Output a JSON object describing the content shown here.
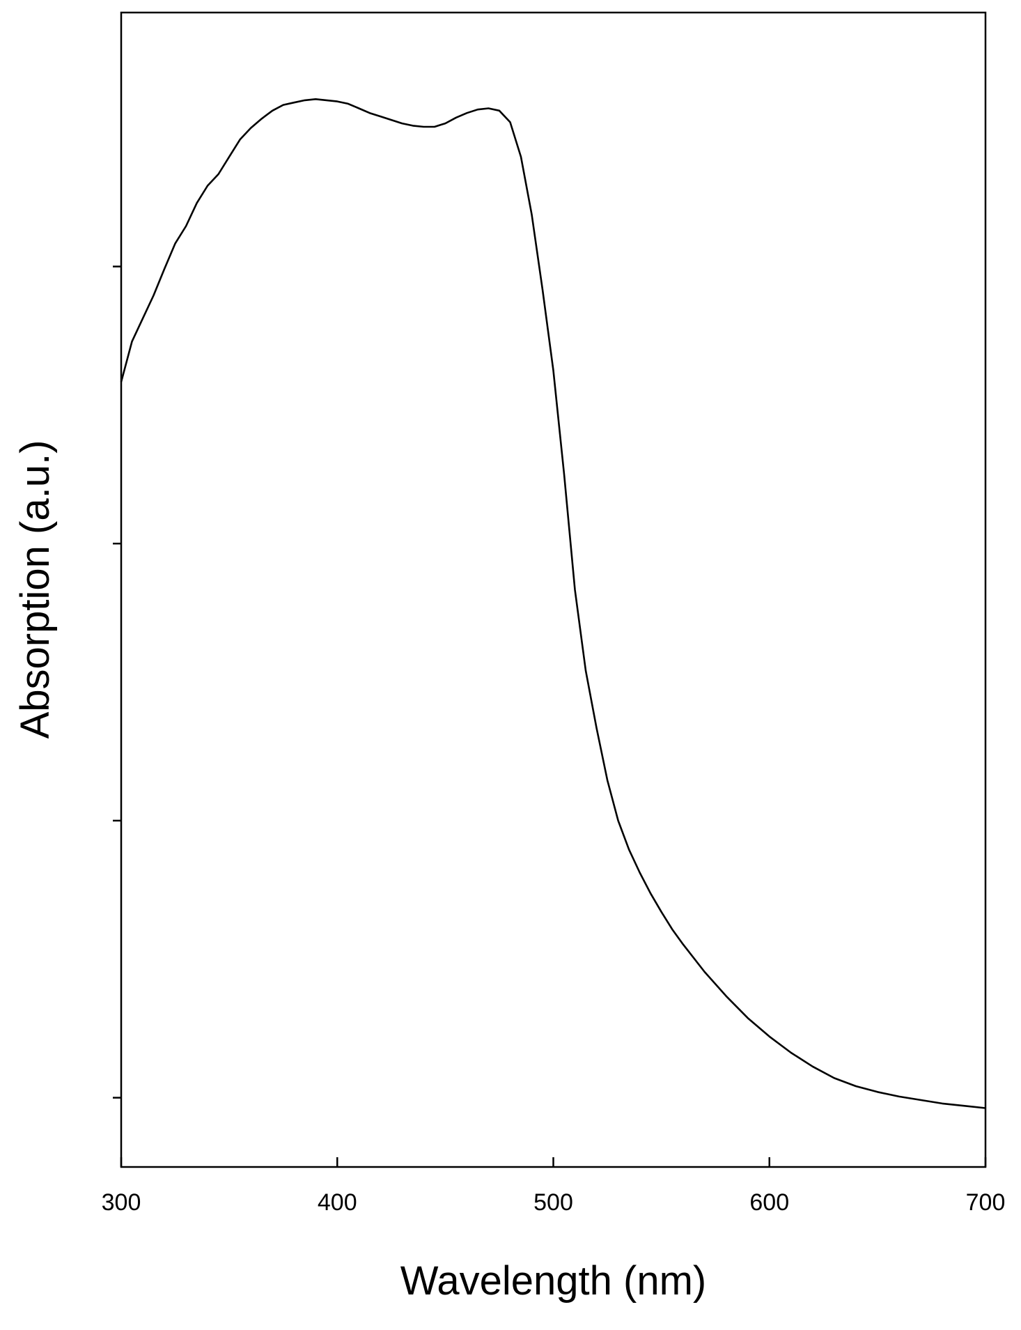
{
  "chart_data": {
    "type": "line",
    "title": "",
    "xlabel": "Wavelength (nm)",
    "ylabel": "Absorption (a.u.)",
    "xlim": [
      300,
      700
    ],
    "ylim": [
      0,
      1.0
    ],
    "x_ticks": [
      "300",
      "400",
      "500",
      "600",
      "700"
    ],
    "y_tick_values": [
      0.06,
      0.3,
      0.54,
      0.78
    ],
    "y_tick_labels_shown": false,
    "grid": false,
    "legend": "none",
    "line_color": "#000000",
    "series": [
      {
        "values_x": [
          300,
          305,
          310,
          315,
          320,
          325,
          330,
          335,
          340,
          345,
          350,
          355,
          360,
          365,
          370,
          375,
          380,
          385,
          390,
          395,
          400,
          405,
          410,
          415,
          420,
          425,
          430,
          435,
          440,
          445,
          450,
          455,
          460,
          465,
          470,
          475,
          480,
          485,
          490,
          495,
          500,
          505,
          510,
          515,
          520,
          525,
          530,
          535,
          540,
          545,
          550,
          555,
          560,
          570,
          580,
          590,
          600,
          610,
          620,
          630,
          640,
          650,
          660,
          670,
          680,
          690,
          700
        ],
        "values_y": [
          0.68,
          0.715,
          0.735,
          0.755,
          0.778,
          0.8,
          0.815,
          0.835,
          0.85,
          0.86,
          0.875,
          0.89,
          0.9,
          0.908,
          0.915,
          0.92,
          0.922,
          0.924,
          0.925,
          0.924,
          0.923,
          0.921,
          0.917,
          0.913,
          0.91,
          0.907,
          0.904,
          0.902,
          0.901,
          0.901,
          0.904,
          0.909,
          0.913,
          0.916,
          0.917,
          0.915,
          0.905,
          0.875,
          0.825,
          0.76,
          0.69,
          0.6,
          0.5,
          0.43,
          0.38,
          0.335,
          0.3,
          0.275,
          0.255,
          0.237,
          0.221,
          0.206,
          0.193,
          0.169,
          0.148,
          0.129,
          0.113,
          0.099,
          0.087,
          0.077,
          0.07,
          0.065,
          0.061,
          0.058,
          0.055,
          0.053,
          0.051
        ]
      }
    ]
  }
}
